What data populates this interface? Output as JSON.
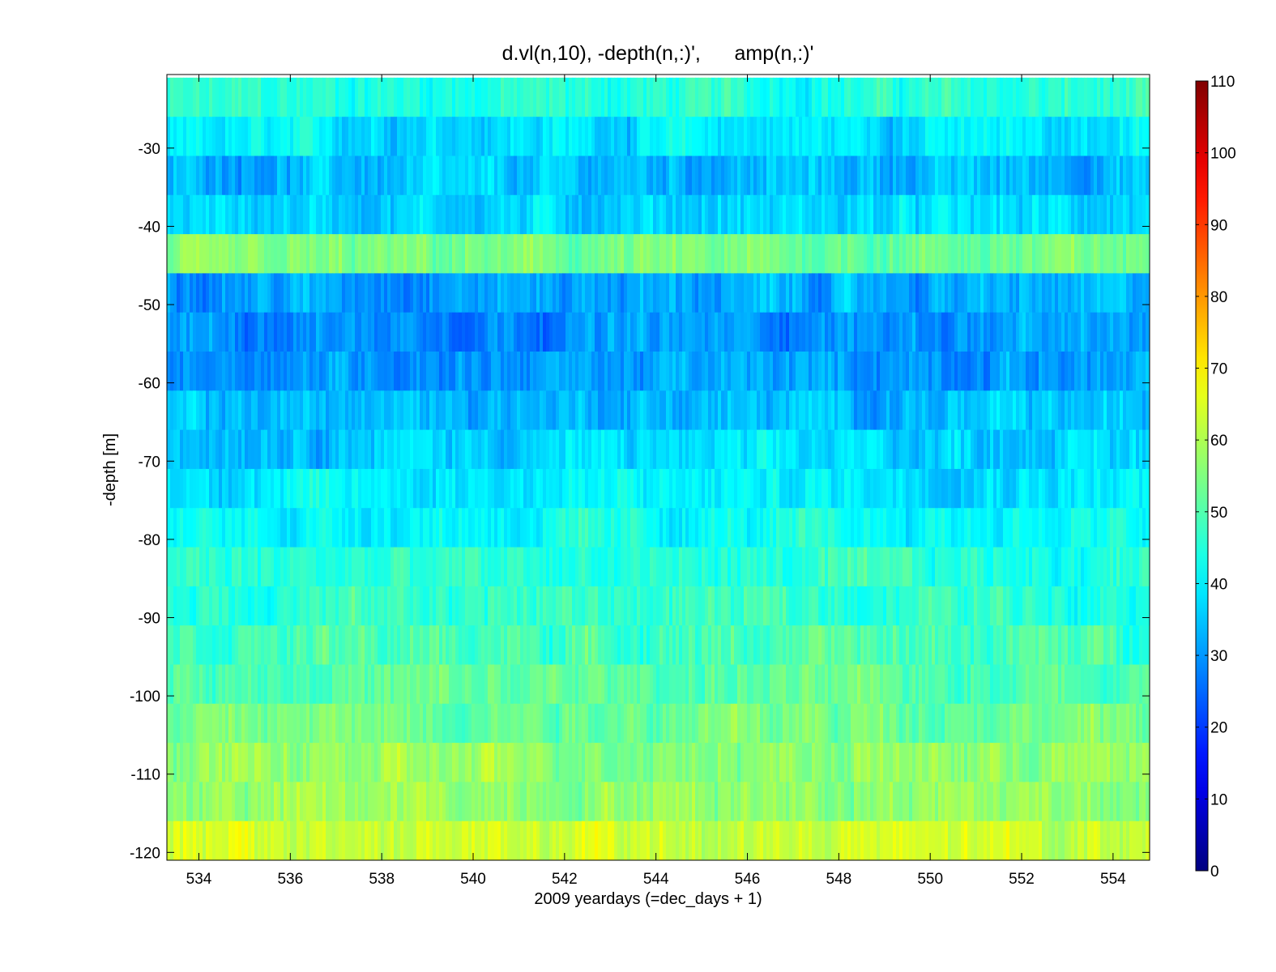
{
  "chart_data": {
    "type": "heatmap",
    "title": "d.vl(n,10), -depth(n,:)',      amp(n,:)'",
    "xlabel": "2009 yeardays (=dec_days + 1)",
    "ylabel": "-depth [m]",
    "xlim": [
      533.3,
      554.8
    ],
    "ylim": [
      -121,
      -20.6
    ],
    "xticks": [
      534,
      536,
      538,
      540,
      542,
      544,
      546,
      548,
      550,
      552,
      554
    ],
    "yticks": [
      -120,
      -110,
      -100,
      -90,
      -80,
      -70,
      -60,
      -50,
      -40,
      -30
    ],
    "colorbar": {
      "colormap": "jet",
      "clim": [
        0,
        110
      ],
      "ticks": [
        0,
        10,
        20,
        30,
        40,
        50,
        60,
        70,
        80,
        90,
        100,
        110
      ]
    },
    "grid": false,
    "bins": [
      {
        "top": -21,
        "bottom": -26,
        "amp": 45
      },
      {
        "top": -26,
        "bottom": -31,
        "amp": 39
      },
      {
        "top": -31,
        "bottom": -36,
        "amp": 34
      },
      {
        "top": -36,
        "bottom": -41,
        "amp": 37
      },
      {
        "top": -41,
        "bottom": -46,
        "amp": 53
      },
      {
        "top": -46,
        "bottom": -51,
        "amp": 32
      },
      {
        "top": -51,
        "bottom": -56,
        "amp": 30
      },
      {
        "top": -56,
        "bottom": -61,
        "amp": 31
      },
      {
        "top": -61,
        "bottom": -66,
        "amp": 34
      },
      {
        "top": -66,
        "bottom": -71,
        "amp": 37
      },
      {
        "top": -71,
        "bottom": -76,
        "amp": 40
      },
      {
        "top": -76,
        "bottom": -81,
        "amp": 42
      },
      {
        "top": -81,
        "bottom": -86,
        "amp": 45
      },
      {
        "top": -86,
        "bottom": -91,
        "amp": 47
      },
      {
        "top": -91,
        "bottom": -96,
        "amp": 49
      },
      {
        "top": -96,
        "bottom": -101,
        "amp": 51
      },
      {
        "top": -101,
        "bottom": -106,
        "amp": 54
      },
      {
        "top": -106,
        "bottom": -111,
        "amp": 57
      },
      {
        "top": -111,
        "bottom": -116,
        "amp": 58
      },
      {
        "top": -116,
        "bottom": -121,
        "amp": 63
      }
    ]
  }
}
